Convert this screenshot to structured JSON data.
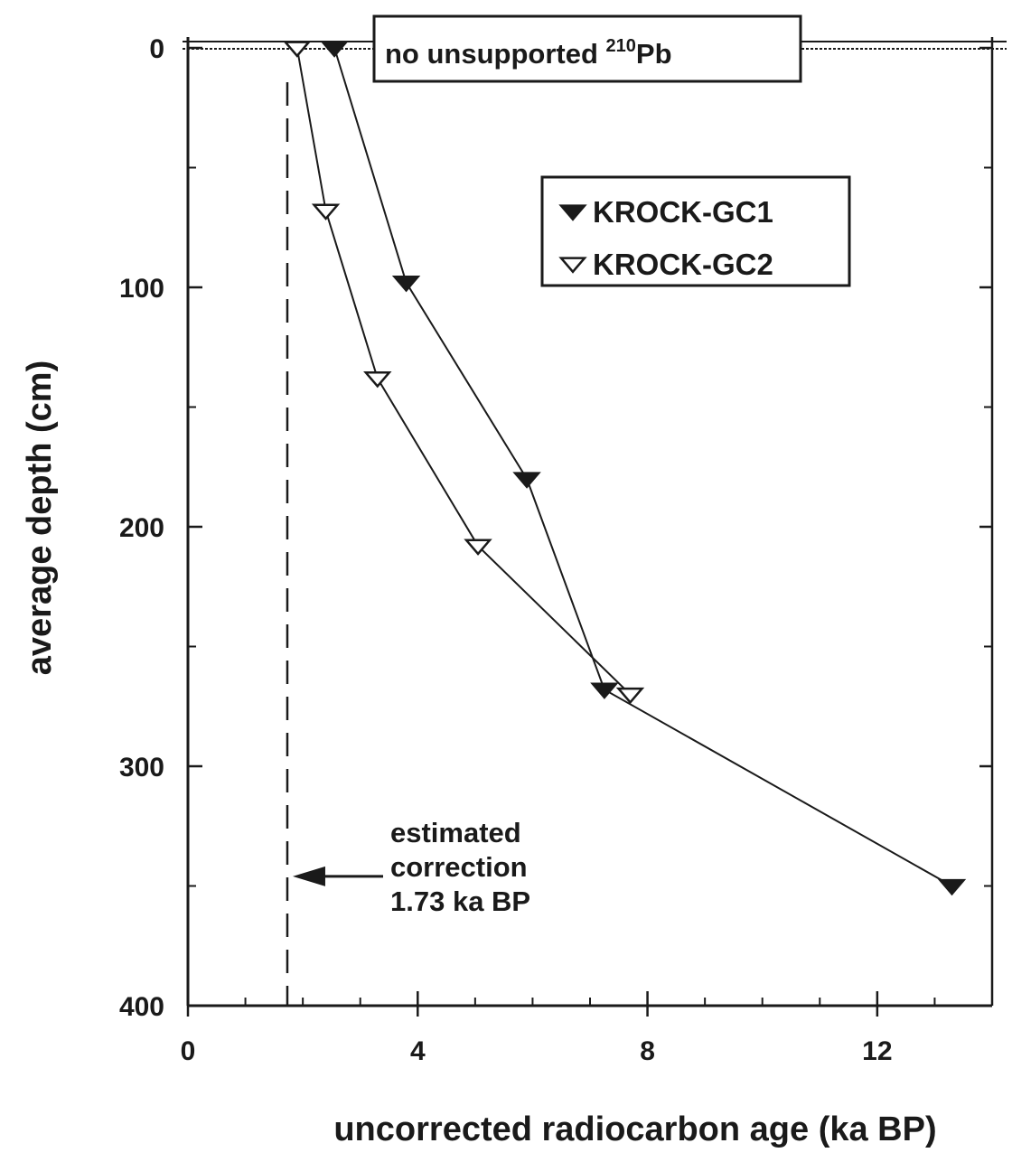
{
  "chart_data": {
    "type": "line",
    "title": "",
    "xlabel": "uncorrected radiocarbon age (ka BP)",
    "ylabel": "average depth (cm)",
    "xlim": [
      0,
      14
    ],
    "ylim": [
      400,
      0
    ],
    "y_inverted": true,
    "x_ticks": [
      "0",
      "4",
      "8",
      "12"
    ],
    "y_ticks": [
      "0",
      "100",
      "200",
      "300",
      "400"
    ],
    "grid": false,
    "legend_position": "top-right",
    "series": [
      {
        "name": "KROCK-GC1",
        "marker": "filled-down-triangle",
        "color": "#1a1a1a",
        "x": [
          2.55,
          3.8,
          5.9,
          7.25,
          13.3
        ],
        "y": [
          0,
          98,
          180,
          268,
          350
        ]
      },
      {
        "name": "KROCK-GC2",
        "marker": "open-down-triangle",
        "color": "#1a1a1a",
        "x": [
          1.9,
          2.4,
          3.3,
          5.05,
          7.7
        ],
        "y": [
          0,
          68,
          138,
          208,
          270
        ]
      }
    ],
    "reference_lines": [
      {
        "type": "vertical",
        "style": "dashed",
        "x": 1.73
      },
      {
        "type": "horizontal",
        "style": "double",
        "y": 0
      }
    ],
    "annotations": {
      "top_box": {
        "prefix": "no unsupported ",
        "superscript": "210",
        "suffix": "Pb"
      },
      "correction_lines": [
        "estimated",
        "correction",
        "1.73 ka BP"
      ],
      "correction_arrow": {
        "x": 1.73,
        "y": 346
      }
    }
  }
}
